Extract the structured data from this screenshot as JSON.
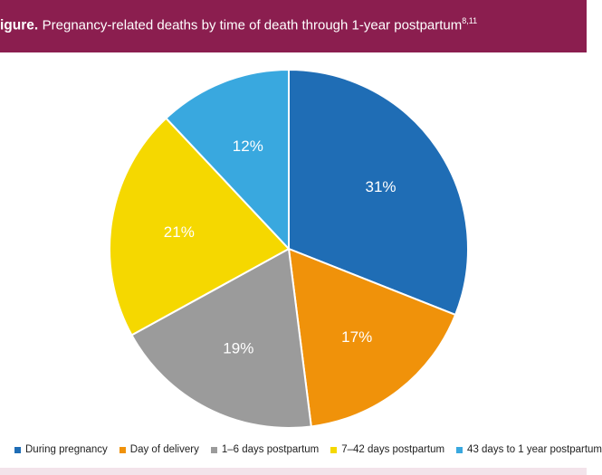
{
  "header": {
    "figure_label": "igure.",
    "title": "Pregnancy-related deaths by time of death through 1-year postpartum",
    "superscript": "8,11"
  },
  "colors": {
    "header_bg": "#8b1e4f",
    "slice_border": "#ffffff"
  },
  "chart_data": {
    "type": "pie",
    "title": "Pregnancy-related deaths by time of death through 1-year postpartum",
    "start_angle_deg": 0,
    "direction": "clockwise",
    "legend_position": "bottom",
    "slices": [
      {
        "name": "During pregnancy",
        "value": 31,
        "label": "31%",
        "color": "#1f6db5"
      },
      {
        "name": "Day of delivery",
        "value": 17,
        "label": "17%",
        "color": "#f0920a"
      },
      {
        "name": "1–6 days postpartum",
        "value": 19,
        "label": "19%",
        "color": "#9b9b9b"
      },
      {
        "name": "7–42 days postpartum",
        "value": 21,
        "label": "21%",
        "color": "#f5d800"
      },
      {
        "name": "43 days to 1 year postpartum",
        "value": 12,
        "label": "12%",
        "color": "#39a8df"
      }
    ]
  },
  "legend": {
    "items": [
      {
        "label": "During pregnancy",
        "color": "#1f6db5"
      },
      {
        "label": "Day of delivery",
        "color": "#f0920a"
      },
      {
        "label": "1–6 days postpartum",
        "color": "#9b9b9b"
      },
      {
        "label": "7–42 days postpartum",
        "color": "#f5d800"
      },
      {
        "label": "43 days to 1 year postpartum",
        "color": "#39a8df"
      }
    ]
  }
}
